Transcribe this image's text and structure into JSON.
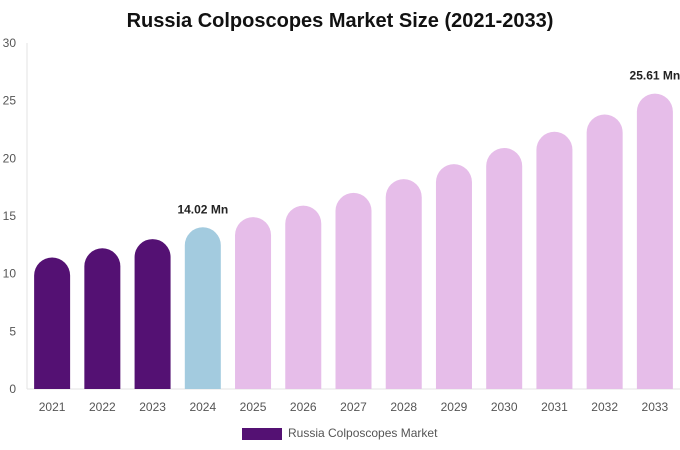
{
  "chart_data": {
    "type": "bar",
    "title": "Russia Colposcopes Market Size (2021-2033)",
    "xlabel": "",
    "ylabel": "",
    "categories": [
      "2021",
      "2022",
      "2023",
      "2024",
      "2025",
      "2026",
      "2027",
      "2028",
      "2029",
      "2030",
      "2031",
      "2032",
      "2033"
    ],
    "series": [
      {
        "name": "Russia Colposcopes Market",
        "values": [
          11.4,
          12.2,
          13.0,
          14.02,
          14.9,
          15.9,
          17.0,
          18.2,
          19.5,
          20.9,
          22.3,
          23.8,
          25.61
        ]
      }
    ],
    "ylim": [
      0,
      30
    ],
    "yticks": [
      0,
      5,
      10,
      15,
      20,
      25,
      30
    ],
    "bar_colors": [
      "#541173",
      "#541173",
      "#541173",
      "#a3cbdf",
      "#e6bde9",
      "#e6bde9",
      "#e6bde9",
      "#e6bde9",
      "#e6bde9",
      "#e6bde9",
      "#e6bde9",
      "#e6bde9",
      "#e6bde9"
    ],
    "annotations": [
      {
        "index": 3,
        "text": "14.02 Mn"
      },
      {
        "index": 12,
        "text": "25.61 Mn"
      }
    ],
    "legend": {
      "position": "bottom",
      "color": "#541173"
    },
    "grid": false
  }
}
